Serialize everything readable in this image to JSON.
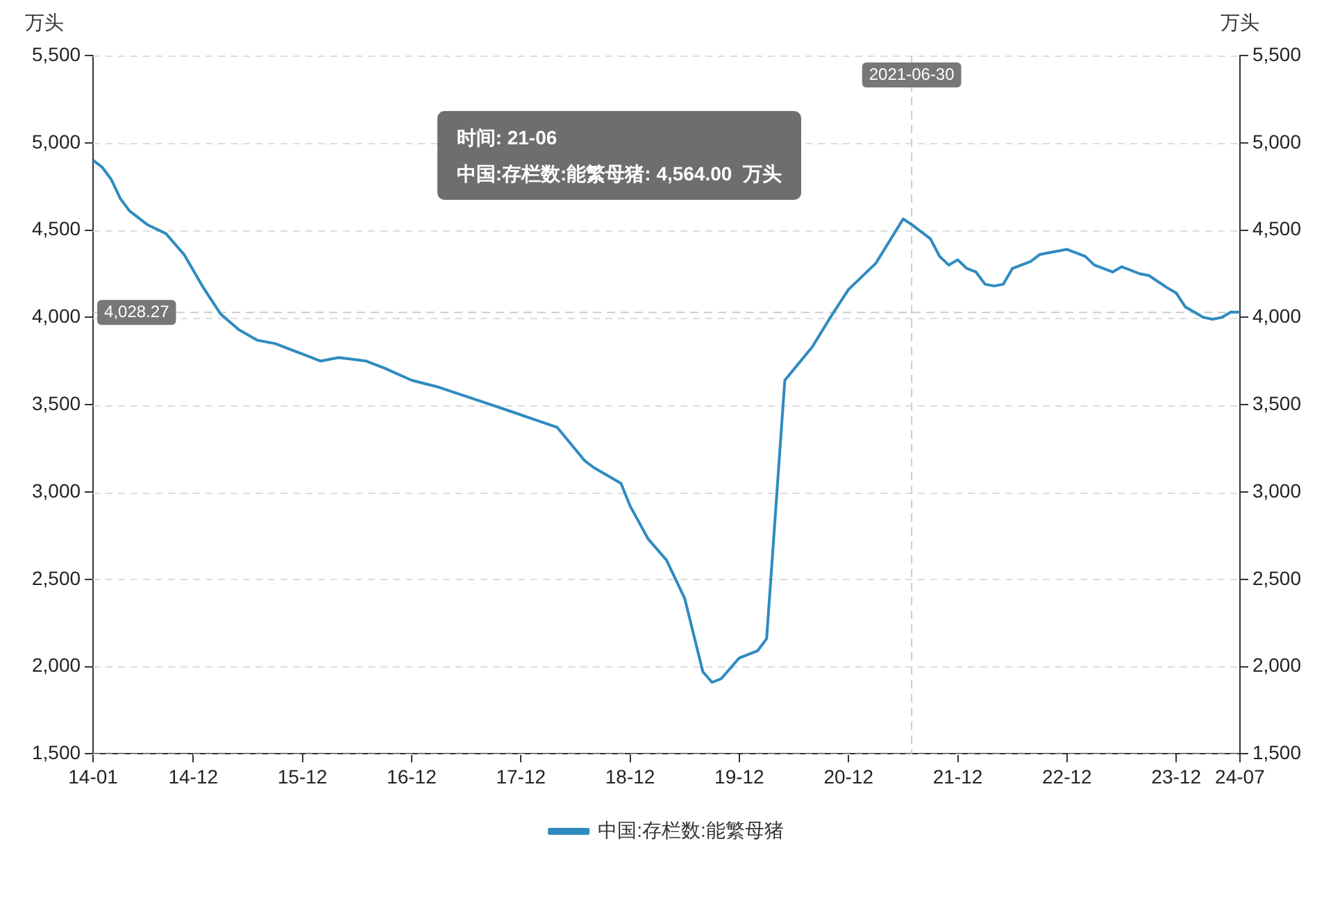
{
  "chart_data": {
    "type": "line",
    "ylabel": "万头",
    "y2label": "万头",
    "xlim": [
      "2014-01",
      "2024-07"
    ],
    "xticks": [
      {
        "value": "2014-01",
        "label": "14-01"
      },
      {
        "value": "2014-12",
        "label": "14-12"
      },
      {
        "value": "2015-12",
        "label": "15-12"
      },
      {
        "value": "2016-12",
        "label": "16-12"
      },
      {
        "value": "2017-12",
        "label": "17-12"
      },
      {
        "value": "2018-12",
        "label": "18-12"
      },
      {
        "value": "2019-12",
        "label": "19-12"
      },
      {
        "value": "2020-12",
        "label": "20-12"
      },
      {
        "value": "2021-12",
        "label": "21-12"
      },
      {
        "value": "2022-12",
        "label": "22-12"
      },
      {
        "value": "2023-12",
        "label": "23-12"
      },
      {
        "value": "2024-07",
        "label": "24-07"
      }
    ],
    "ylim": [
      1500,
      5500
    ],
    "yticks": [
      {
        "value": 1500,
        "label": "1,500"
      },
      {
        "value": 2000,
        "label": "2,000"
      },
      {
        "value": 2500,
        "label": "2,500"
      },
      {
        "value": 3000,
        "label": "3,000"
      },
      {
        "value": 3500,
        "label": "3,500"
      },
      {
        "value": 4000,
        "label": "4,000"
      },
      {
        "value": 4500,
        "label": "4,500"
      },
      {
        "value": 5000,
        "label": "5,000"
      },
      {
        "value": 5500,
        "label": "5,500"
      }
    ],
    "y2lim": [
      1500,
      5500
    ],
    "y2ticks": [
      {
        "value": 1500,
        "label": "1,500"
      },
      {
        "value": 2000,
        "label": "2,000"
      },
      {
        "value": 2500,
        "label": "2,500"
      },
      {
        "value": 3000,
        "label": "3,000"
      },
      {
        "value": 3500,
        "label": "3,500"
      },
      {
        "value": 4000,
        "label": "4,000"
      },
      {
        "value": 4500,
        "label": "4,500"
      },
      {
        "value": 5000,
        "label": "5,000"
      },
      {
        "value": 5500,
        "label": "5,500"
      }
    ],
    "grid": "y",
    "legend": "bottom",
    "marker": "none",
    "line_style": "solid",
    "series": [
      {
        "name": "中国:存栏数:能繁母猪",
        "color": "#2e8bc0",
        "x": [
          "2014-01",
          "2014-02",
          "2014-03",
          "2014-04",
          "2014-05",
          "2014-07",
          "2014-09",
          "2014-11",
          "2015-01",
          "2015-03",
          "2015-05",
          "2015-07",
          "2015-09",
          "2015-12",
          "2016-02",
          "2016-04",
          "2016-07",
          "2016-09",
          "2016-12",
          "2017-03",
          "2017-07",
          "2017-11",
          "2018-04",
          "2018-07",
          "2018-08",
          "2018-11",
          "2018-12",
          "2019-02",
          "2019-04",
          "2019-06",
          "2019-08",
          "2019-09",
          "2019-10",
          "2019-11",
          "2019-12",
          "2020-02",
          "2020-03",
          "2020-05",
          "2020-08",
          "2020-10",
          "2020-12",
          "2021-03",
          "2021-06",
          "2021-07",
          "2021-09",
          "2021-10",
          "2021-11",
          "2021-12",
          "2022-01",
          "2022-02",
          "2022-03",
          "2022-04",
          "2022-05",
          "2022-06",
          "2022-08",
          "2022-09",
          "2022-11",
          "2022-12",
          "2023-02",
          "2023-03",
          "2023-05",
          "2023-06",
          "2023-08",
          "2023-09",
          "2023-11",
          "2023-12",
          "2024-01",
          "2024-03",
          "2024-04",
          "2024-05",
          "2024-06",
          "2024-07"
        ],
        "values": [
          4900,
          4860,
          4790,
          4680,
          4610,
          4530,
          4480,
          4360,
          4180,
          4020,
          3930,
          3870,
          3850,
          3790,
          3750,
          3770,
          3750,
          3710,
          3640,
          3600,
          3530,
          3460,
          3370,
          3180,
          3140,
          3050,
          2920,
          2730,
          2610,
          2390,
          1970,
          1910,
          1930,
          1990,
          2050,
          2090,
          2160,
          3640,
          3830,
          4000,
          4160,
          4310,
          4564,
          4530,
          4450,
          4350,
          4300,
          4330,
          4280,
          4260,
          4190,
          4180,
          4190,
          4280,
          4320,
          4360,
          4380,
          4390,
          4350,
          4300,
          4260,
          4290,
          4250,
          4240,
          4170,
          4140,
          4060,
          4000,
          3990,
          4000,
          4030,
          4030
        ]
      }
    ],
    "ref_lines": [
      {
        "axis": "y",
        "value": 4028.27,
        "label": "4,028.27",
        "color": "#cccccc",
        "line_style": "dashed"
      },
      {
        "axis": "x",
        "value": "2021-06-30",
        "label": "2021-06-30",
        "color": "#cccccc",
        "line_style": "dashed"
      }
    ],
    "annotations": [
      "时间: 21-06\n中国:存栏数:能繁母猪: 4,564.00  万头"
    ]
  }
}
